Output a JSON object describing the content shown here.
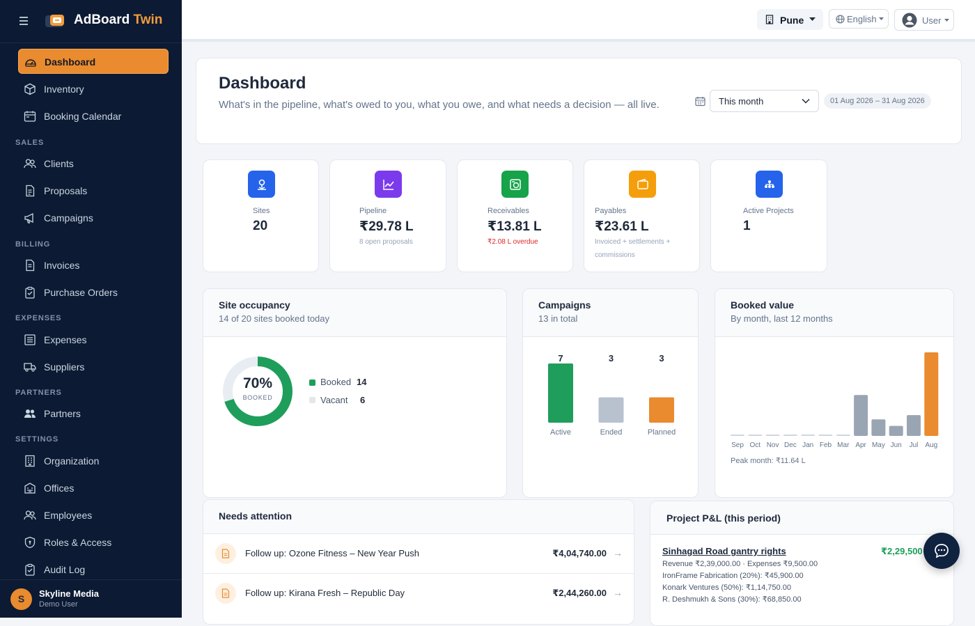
{
  "brand": {
    "name_part1": "AdBoard",
    "name_part2": "Twin"
  },
  "sidebar": {
    "items": [
      {
        "label": "Dashboard",
        "icon": "gauge-icon",
        "active": true
      },
      {
        "label": "Inventory",
        "icon": "cube-icon"
      },
      {
        "label": "Booking Calendar",
        "icon": "calendar-icon"
      },
      {
        "label": "Clients",
        "icon": "users-icon"
      },
      {
        "label": "Proposals",
        "icon": "document-icon"
      },
      {
        "label": "Campaigns",
        "icon": "megaphone-icon"
      },
      {
        "label": "Invoices",
        "icon": "invoice-icon"
      },
      {
        "label": "Purchase Orders",
        "icon": "clipboard-icon"
      },
      {
        "label": "Expenses",
        "icon": "receipt-icon"
      },
      {
        "label": "Suppliers",
        "icon": "truck-icon"
      },
      {
        "label": "Partners",
        "icon": "people-icon"
      },
      {
        "label": "Organization",
        "icon": "building-icon"
      },
      {
        "label": "Offices",
        "icon": "office-icon"
      },
      {
        "label": "Employees",
        "icon": "employees-icon"
      },
      {
        "label": "Roles & Access",
        "icon": "shield-icon"
      },
      {
        "label": "Audit Log",
        "icon": "audit-icon"
      }
    ],
    "sections": [
      "SALES",
      "BILLING",
      "EXPENSES",
      "PARTNERS",
      "SETTINGS"
    ],
    "footer": {
      "initial": "S",
      "org": "Skyline Media",
      "user": "Demo User"
    }
  },
  "topbar": {
    "city": "Pune",
    "language": "English",
    "user": "User"
  },
  "page": {
    "title": "Dashboard",
    "subtitle": "What's in the pipeline, what's owed to you, what you owe, and what needs a decision — all live.",
    "period": "This month",
    "date_range": "01 Aug 2026 – 31 Aug 2026"
  },
  "kpis": [
    {
      "label": "Sites",
      "value": "20",
      "note": "",
      "color": "#2563eb",
      "icon": "sites-icon"
    },
    {
      "label": "Pipeline",
      "value": "₹29.78 L",
      "note": "8 open proposals",
      "color": "#7c3aed",
      "icon": "chart-icon"
    },
    {
      "label": "Receivables",
      "value": "₹13.81 L",
      "note": "₹2.08 L overdue",
      "color": "#16a34a",
      "icon": "money-icon"
    },
    {
      "label": "Payables",
      "value": "₹23.61 L",
      "note_line1": "Invoiced + settlements +",
      "note_line2": "commissions",
      "color": "#f59e0b",
      "icon": "wallet-icon"
    },
    {
      "label": "Active Projects",
      "value": "1",
      "note": "",
      "color": "#2563eb",
      "icon": "projects-icon"
    }
  ],
  "occupancy": {
    "title": "Site occupancy",
    "subtitle": "14 of 20 sites booked today",
    "percent_text": "70%",
    "percent": 70,
    "caption": "BOOKED",
    "legend": [
      {
        "label": "Booked",
        "value": "14",
        "color": "#1e9e5a"
      },
      {
        "label": "Vacant",
        "value": "6",
        "color": "#e5e7eb"
      }
    ]
  },
  "campaigns": {
    "title": "Campaigns",
    "subtitle": "13 in total"
  },
  "booked": {
    "title": "Booked value",
    "subtitle": "By month, last 12 months",
    "peak": "Peak month: ₹11.64 L"
  },
  "chart_data": [
    {
      "type": "bar",
      "categories": [
        "Active",
        "Ended",
        "Planned"
      ],
      "values": [
        7,
        3,
        3
      ],
      "colors": [
        "#1e9e5a",
        "#b8c2cf",
        "#e98b2e"
      ]
    },
    {
      "type": "bar",
      "categories": [
        "Sep",
        "Oct",
        "Nov",
        "Dec",
        "Jan",
        "Feb",
        "Mar",
        "Apr",
        "May",
        "Jun",
        "Jul",
        "Aug"
      ],
      "values": [
        0,
        0,
        0,
        0,
        0,
        0,
        0,
        5.7,
        2.3,
        1.4,
        2.9,
        11.64
      ],
      "unit": "₹ L",
      "highlight_color": "#e98b2e",
      "color": "#9aa5b4"
    }
  ],
  "attention": {
    "title": "Needs attention",
    "rows": [
      {
        "text": "Follow up: Ozone Fitness – New Year Push",
        "amount": "₹4,04,740.00",
        "arrow": "→"
      },
      {
        "text": "Follow up: Kirana Fresh – Republic Day",
        "amount": "₹2,44,260.00",
        "arrow": "→"
      }
    ]
  },
  "pnl": {
    "title": "Project P&L (this period)",
    "project": "Sinhagad Road gantry rights",
    "amount": "₹2,29,500",
    "lines": [
      "Revenue ₹2,39,000.00 · Expenses ₹9,500.00",
      "IronFrame Fabrication (20%): ₹45,900.00",
      "Konark Ventures (50%): ₹1,14,750.00",
      "R. Deshmukh & Sons (30%): ₹68,850.00"
    ]
  }
}
